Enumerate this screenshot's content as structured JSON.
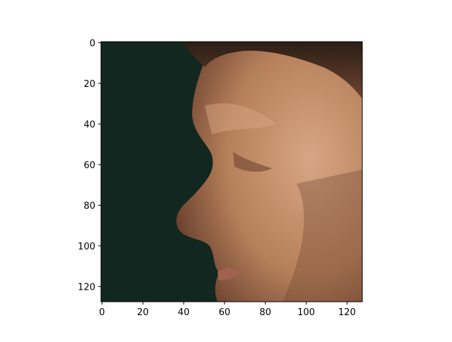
{
  "chart_data": {
    "type": "image",
    "title": "",
    "xlabel": "",
    "ylabel": "",
    "xlim": [
      0,
      127
    ],
    "ylim": [
      127,
      0
    ],
    "x_ticks": [
      0,
      20,
      40,
      60,
      80,
      100,
      120
    ],
    "y_ticks": [
      0,
      20,
      40,
      60,
      80,
      100,
      120
    ],
    "image_subject": "close-up side profile of a man's face with short dark hair against a dark green background",
    "colors": {
      "background": "#12271f",
      "skin": "#b57f5a",
      "skin_highlight": "#d8a684",
      "skin_shadow": "#6e4430",
      "hair": "#2b1e16",
      "lip": "#a0624f"
    }
  }
}
